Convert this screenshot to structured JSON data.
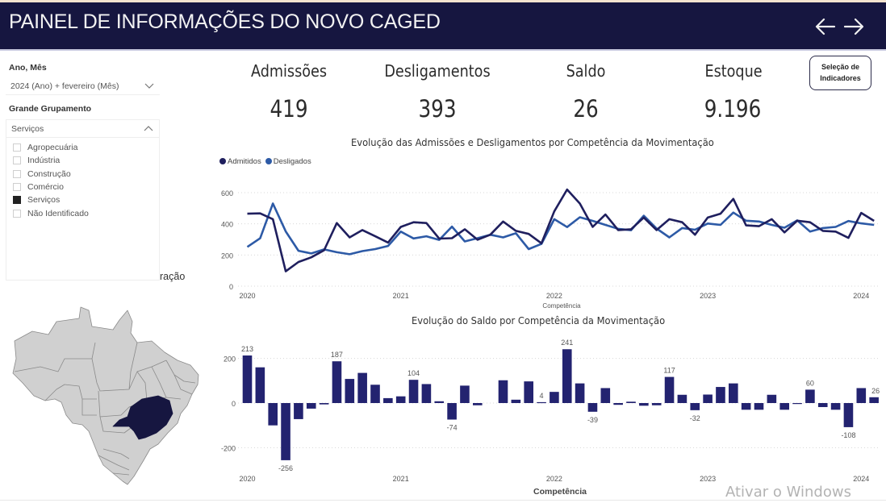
{
  "header": {
    "title": "PAINEL DE INFORMAÇÕES DO NOVO CAGED",
    "back_icon": "arrow-left-icon",
    "forward_icon": "arrow-right-icon"
  },
  "filters": {
    "ano_mes_label": "Ano, Mês",
    "ano_mes_value": "2024 (Ano) + fevereiro (Mês)",
    "grupamento_label": "Grande Grupamento",
    "grupamento_value": "Serviços",
    "options": [
      {
        "label": "Agropecuária",
        "checked": false
      },
      {
        "label": "Indústria",
        "checked": false
      },
      {
        "label": "Construção",
        "checked": false
      },
      {
        "label": "Comércio",
        "checked": false
      },
      {
        "label": "Serviços",
        "checked": true
      },
      {
        "label": "Não Identificado",
        "checked": false
      }
    ],
    "partial_text": "ração"
  },
  "kpis": [
    {
      "label": "Admissões",
      "value": "419"
    },
    {
      "label": "Desligamentos",
      "value": "393"
    },
    {
      "label": "Saldo",
      "value": "26"
    },
    {
      "label": "Estoque",
      "value": "9.196"
    }
  ],
  "selection_button": {
    "line1": "Seleção de",
    "line2": "Indicadores"
  },
  "map": {
    "highlighted_state": "Minas Gerais",
    "highlight_color": "#161640",
    "base_color": "#d0d0d0"
  },
  "colors": {
    "header_bg": "#161640",
    "admitidos": "#1f1f5e",
    "desligados": "#2d5aa6",
    "bars": "#232370"
  },
  "watermark": "Ativar o Windows",
  "chart_data": [
    {
      "type": "line",
      "title": "Evolução das Admissões e Desligamentos por Competência da Movimentação",
      "xlabel": "Competência",
      "ylabel": "",
      "ylim": [
        0,
        600
      ],
      "yticks": [
        "0",
        "200",
        "400",
        "600"
      ],
      "xticks": [
        "2020",
        "2021",
        "2022",
        "2023",
        "2024"
      ],
      "legend": "top-left",
      "grid": true,
      "x": [
        "2020-01",
        "2020-02",
        "2020-03",
        "2020-04",
        "2020-05",
        "2020-06",
        "2020-07",
        "2020-08",
        "2020-09",
        "2020-10",
        "2020-11",
        "2020-12",
        "2021-01",
        "2021-02",
        "2021-03",
        "2021-04",
        "2021-05",
        "2021-06",
        "2021-07",
        "2021-08",
        "2021-09",
        "2021-10",
        "2021-11",
        "2021-12",
        "2022-01",
        "2022-02",
        "2022-03",
        "2022-04",
        "2022-05",
        "2022-06",
        "2022-07",
        "2022-08",
        "2022-09",
        "2022-10",
        "2022-11",
        "2022-12",
        "2023-01",
        "2023-02",
        "2023-03",
        "2023-04",
        "2023-05",
        "2023-06",
        "2023-07",
        "2023-08",
        "2023-09",
        "2023-10",
        "2023-11",
        "2023-12",
        "2024-01",
        "2024-02"
      ],
      "series": [
        {
          "name": "Admitidos",
          "values": [
            465,
            467,
            430,
            95,
            155,
            185,
            230,
            405,
            313,
            360,
            320,
            280,
            380,
            410,
            405,
            305,
            308,
            365,
            298,
            330,
            415,
            355,
            335,
            275,
            480,
            620,
            530,
            380,
            460,
            360,
            365,
            440,
            360,
            430,
            410,
            330,
            440,
            465,
            560,
            390,
            385,
            430,
            345,
            420,
            410,
            355,
            350,
            310,
            470,
            419
          ]
        },
        {
          "name": "Desligados",
          "values": [
            252,
            307,
            530,
            351,
            227,
            210,
            236,
            218,
            205,
            225,
            238,
            258,
            350,
            306,
            320,
            297,
            382,
            287,
            308,
            330,
            313,
            340,
            238,
            271,
            430,
            379,
            442,
            419,
            393,
            368,
            359,
            452,
            370,
            313,
            373,
            362,
            402,
            393,
            472,
            420,
            415,
            393,
            375,
            422,
            350,
            373,
            380,
            418,
            403,
            393
          ]
        }
      ]
    },
    {
      "type": "bar",
      "title": "Evolução do Saldo por Competência da Movimentação",
      "xlabel": "Competência",
      "ylabel": "",
      "ylim": [
        -280,
        250
      ],
      "yticks": [
        "-200",
        "0",
        "200"
      ],
      "xticks": [
        "2020",
        "2021",
        "2022",
        "2023",
        "2024"
      ],
      "grid": true,
      "x": [
        "2020-01",
        "2020-02",
        "2020-03",
        "2020-04",
        "2020-05",
        "2020-06",
        "2020-07",
        "2020-08",
        "2020-09",
        "2020-10",
        "2020-11",
        "2020-12",
        "2021-01",
        "2021-02",
        "2021-03",
        "2021-04",
        "2021-05",
        "2021-06",
        "2021-07",
        "2021-08",
        "2021-09",
        "2021-10",
        "2021-11",
        "2021-12",
        "2022-01",
        "2022-02",
        "2022-03",
        "2022-04",
        "2022-05",
        "2022-06",
        "2022-07",
        "2022-08",
        "2022-09",
        "2022-10",
        "2022-11",
        "2022-12",
        "2023-01",
        "2023-02",
        "2023-03",
        "2023-04",
        "2023-05",
        "2023-06",
        "2023-07",
        "2023-08",
        "2023-09",
        "2023-10",
        "2023-11",
        "2023-12",
        "2024-01",
        "2024-02"
      ],
      "values": [
        213,
        160,
        -100,
        -256,
        -72,
        -25,
        -6,
        187,
        108,
        135,
        82,
        22,
        30,
        104,
        85,
        8,
        -74,
        78,
        -10,
        0,
        102,
        15,
        97,
        4,
        50,
        241,
        88,
        -39,
        67,
        -8,
        6,
        -12,
        -10,
        117,
        37,
        -32,
        38,
        72,
        88,
        -30,
        -30,
        37,
        -30,
        -2,
        60,
        -18,
        -30,
        -108,
        67,
        26
      ],
      "data_labels": {
        "2020-01": "213",
        "2020-04": "-256",
        "2020-08": "187",
        "2021-02": "104",
        "2021-05": "-74",
        "2021-12": "4",
        "2022-02": "241",
        "2022-04": "-39",
        "2022-10": "117",
        "2022-12": "-32",
        "2023-09": "60",
        "2023-12": "-108",
        "2024-02": "26"
      }
    }
  ]
}
